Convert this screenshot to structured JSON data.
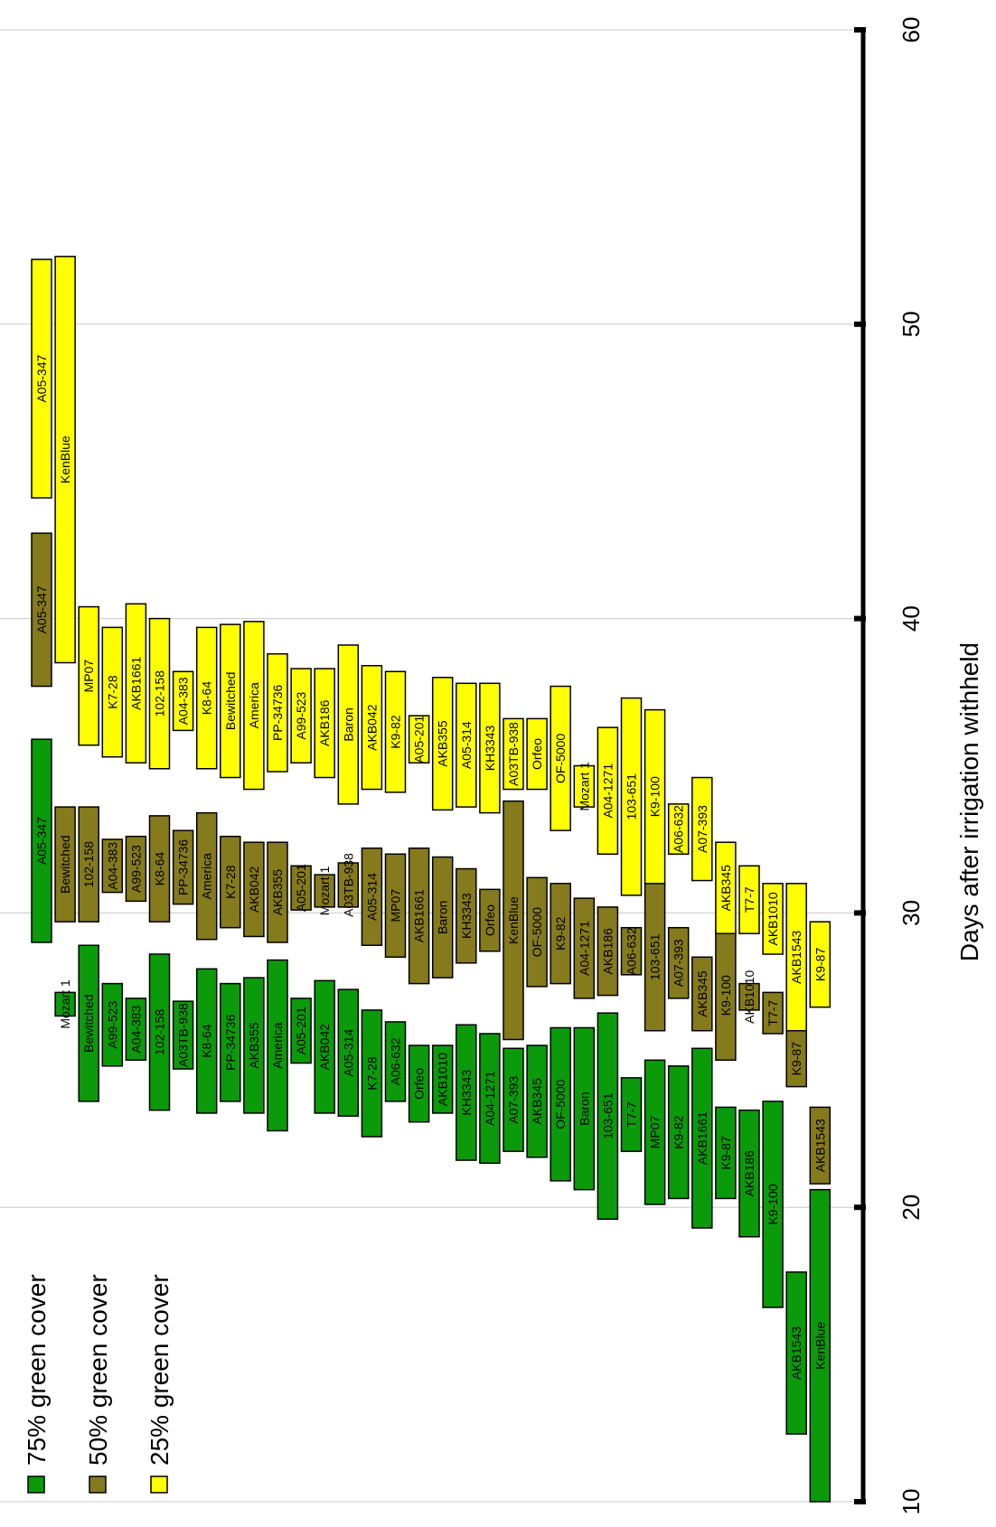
{
  "chart_data": {
    "type": "bar",
    "orientation": "floating-range",
    "xlabel": "Days after irrigation withheld",
    "xlim": [
      10,
      60
    ],
    "ticks": [
      10,
      20,
      30,
      40,
      50,
      60
    ],
    "grid": true,
    "legend_position": "left",
    "colors": {
      "75% green cover": "#0a9a0a",
      "50% green cover": "#857a1c",
      "25% green cover": "#ffff00"
    },
    "series": [
      {
        "name": "75% green cover",
        "color": "#0a9a0a",
        "bars": [
          {
            "label": "A05-347",
            "row": 0,
            "start": 29.0,
            "end": 35.9
          },
          {
            "label": "Mozart 1",
            "row": 1,
            "start": 26.5,
            "end": 27.3
          },
          {
            "label": "Bewitched",
            "row": 2,
            "start": 23.6,
            "end": 28.9
          },
          {
            "label": "A99-523",
            "row": 3,
            "start": 24.8,
            "end": 27.6
          },
          {
            "label": "A04-383",
            "row": 4,
            "start": 25.0,
            "end": 27.1
          },
          {
            "label": "102-158",
            "row": 5,
            "start": 23.3,
            "end": 28.6
          },
          {
            "label": "A03TB-938",
            "row": 6,
            "start": 24.7,
            "end": 27.0
          },
          {
            "label": "K8-64",
            "row": 7,
            "start": 23.2,
            "end": 28.1
          },
          {
            "label": "PP-34736",
            "row": 8,
            "start": 23.6,
            "end": 27.6
          },
          {
            "label": "AKB355",
            "row": 9,
            "start": 23.2,
            "end": 27.8
          },
          {
            "label": "America",
            "row": 10,
            "start": 22.6,
            "end": 28.4
          },
          {
            "label": "A05-201",
            "row": 11,
            "start": 24.9,
            "end": 27.1
          },
          {
            "label": "AKB042",
            "row": 12,
            "start": 23.2,
            "end": 27.7
          },
          {
            "label": "A05-314",
            "row": 13,
            "start": 23.1,
            "end": 27.4
          },
          {
            "label": "K7-28",
            "row": 14,
            "start": 22.4,
            "end": 26.7
          },
          {
            "label": "A06-632",
            "row": 15,
            "start": 23.6,
            "end": 26.3
          },
          {
            "label": "Orfeo",
            "row": 16,
            "start": 22.9,
            "end": 25.5
          },
          {
            "label": "AKB1010",
            "row": 17,
            "start": 23.2,
            "end": 25.5
          },
          {
            "label": "KH3343",
            "row": 18,
            "start": 21.6,
            "end": 26.2
          },
          {
            "label": "A04-1271",
            "row": 19,
            "start": 21.5,
            "end": 25.9
          },
          {
            "label": "A07-393",
            "row": 20,
            "start": 21.9,
            "end": 25.4
          },
          {
            "label": "AKB345",
            "row": 21,
            "start": 21.7,
            "end": 25.5
          },
          {
            "label": "OF-5000",
            "row": 22,
            "start": 20.9,
            "end": 26.1
          },
          {
            "label": "Baron",
            "row": 23,
            "start": 20.6,
            "end": 26.1
          },
          {
            "label": "103-651",
            "row": 24,
            "start": 19.6,
            "end": 26.6
          },
          {
            "label": "T7-7",
            "row": 25,
            "start": 21.9,
            "end": 24.4
          },
          {
            "label": "MP07",
            "row": 26,
            "start": 20.1,
            "end": 25.0
          },
          {
            "label": "K9-82",
            "row": 27,
            "start": 20.3,
            "end": 24.8
          },
          {
            "label": "AKB1661",
            "row": 28,
            "start": 19.3,
            "end": 25.4
          },
          {
            "label": "K9-87",
            "row": 29,
            "start": 20.3,
            "end": 23.4
          },
          {
            "label": "AKB186",
            "row": 30,
            "start": 19.0,
            "end": 23.3
          },
          {
            "label": "K9-100",
            "row": 31,
            "start": 16.6,
            "end": 23.6
          },
          {
            "label": "AKB1543",
            "row": 32,
            "start": 12.3,
            "end": 17.8
          },
          {
            "label": "KenBlue",
            "row": 33,
            "start": 10.0,
            "end": 20.6
          }
        ]
      },
      {
        "name": "50% green cover",
        "color": "#857a1c",
        "bars": [
          {
            "label": "A05-347",
            "row": 0,
            "start": 37.7,
            "end": 42.9
          },
          {
            "label": "Bewitched",
            "row": 1,
            "start": 29.7,
            "end": 33.6
          },
          {
            "label": "102-158",
            "row": 2,
            "start": 29.7,
            "end": 33.6
          },
          {
            "label": "A04-383",
            "row": 3,
            "start": 30.7,
            "end": 32.5
          },
          {
            "label": "A99-523",
            "row": 4,
            "start": 30.4,
            "end": 32.6
          },
          {
            "label": "K8-64",
            "row": 5,
            "start": 29.7,
            "end": 33.3
          },
          {
            "label": "PP-34736",
            "row": 6,
            "start": 30.3,
            "end": 32.8
          },
          {
            "label": "America",
            "row": 7,
            "start": 29.1,
            "end": 33.4
          },
          {
            "label": "K7-28",
            "row": 8,
            "start": 29.5,
            "end": 32.6
          },
          {
            "label": "AKB042",
            "row": 9,
            "start": 29.2,
            "end": 32.4
          },
          {
            "label": "AKB355",
            "row": 10,
            "start": 29.0,
            "end": 32.4
          },
          {
            "label": "A05-201",
            "row": 11,
            "start": 30.1,
            "end": 31.6
          },
          {
            "label": "Mozart 1",
            "row": 12,
            "start": 30.2,
            "end": 31.3
          },
          {
            "label": "A03TB-938",
            "row": 13,
            "start": 30.2,
            "end": 31.7
          },
          {
            "label": "A05-314",
            "row": 14,
            "start": 28.9,
            "end": 32.2
          },
          {
            "label": "MP07",
            "row": 15,
            "start": 28.5,
            "end": 32.0
          },
          {
            "label": "AKB1661",
            "row": 16,
            "start": 27.6,
            "end": 32.2
          },
          {
            "label": "Baron",
            "row": 17,
            "start": 27.8,
            "end": 31.9
          },
          {
            "label": "KH3343",
            "row": 18,
            "start": 28.3,
            "end": 31.5
          },
          {
            "label": "Orfeo",
            "row": 19,
            "start": 28.7,
            "end": 30.8
          },
          {
            "label": "KenBlue",
            "row": 20,
            "start": 25.7,
            "end": 33.8
          },
          {
            "label": "OF-5000",
            "row": 21,
            "start": 27.5,
            "end": 31.2
          },
          {
            "label": "K9-82",
            "row": 22,
            "start": 27.6,
            "end": 31.0
          },
          {
            "label": "A04-1271",
            "row": 23,
            "start": 27.1,
            "end": 30.5
          },
          {
            "label": "AKB186",
            "row": 24,
            "start": 27.2,
            "end": 30.2
          },
          {
            "label": "A06-632",
            "row": 25,
            "start": 27.9,
            "end": 29.5
          },
          {
            "label": "103-651",
            "row": 26,
            "start": 26.0,
            "end": 31.0
          },
          {
            "label": "A07-393",
            "row": 27,
            "start": 27.1,
            "end": 29.5
          },
          {
            "label": "AKB345",
            "row": 28,
            "start": 26.0,
            "end": 28.5
          },
          {
            "label": "K9-100",
            "row": 29,
            "start": 25.0,
            "end": 29.4
          },
          {
            "label": "AKB1010",
            "row": 30,
            "start": 26.7,
            "end": 27.6
          },
          {
            "label": "T7-7",
            "row": 31,
            "start": 25.9,
            "end": 27.3
          },
          {
            "label": "K9-87",
            "row": 32,
            "start": 24.1,
            "end": 26.0
          },
          {
            "label": "AKB1543",
            "row": 33,
            "start": 20.8,
            "end": 23.4
          }
        ]
      },
      {
        "name": "25% green cover",
        "color": "#ffff00",
        "bars": [
          {
            "label": "A05-347",
            "row": 0,
            "start": 44.1,
            "end": 52.2
          },
          {
            "label": "KenBlue",
            "row": 1,
            "start": 38.5,
            "end": 52.3
          },
          {
            "label": "MP07",
            "row": 2,
            "start": 35.7,
            "end": 40.4
          },
          {
            "label": "K7-28",
            "row": 3,
            "start": 35.3,
            "end": 39.7
          },
          {
            "label": "AKB1661",
            "row": 4,
            "start": 35.1,
            "end": 40.5
          },
          {
            "label": "102-158",
            "row": 5,
            "start": 34.9,
            "end": 40.0
          },
          {
            "label": "A04-383",
            "row": 6,
            "start": 36.2,
            "end": 38.2
          },
          {
            "label": "K8-64",
            "row": 7,
            "start": 34.9,
            "end": 39.7
          },
          {
            "label": "Bewitched",
            "row": 8,
            "start": 34.6,
            "end": 39.8
          },
          {
            "label": "America",
            "row": 9,
            "start": 34.2,
            "end": 39.9
          },
          {
            "label": "PP-34736",
            "row": 10,
            "start": 34.8,
            "end": 38.8
          },
          {
            "label": "A99-523",
            "row": 11,
            "start": 35.1,
            "end": 38.3
          },
          {
            "label": "AKB186",
            "row": 12,
            "start": 34.6,
            "end": 38.3
          },
          {
            "label": "Baron",
            "row": 13,
            "start": 33.7,
            "end": 39.1
          },
          {
            "label": "AKB042",
            "row": 14,
            "start": 34.2,
            "end": 38.4
          },
          {
            "label": "K9-82",
            "row": 15,
            "start": 34.1,
            "end": 38.2
          },
          {
            "label": "A05-201",
            "row": 16,
            "start": 35.1,
            "end": 36.7
          },
          {
            "label": "AKB355",
            "row": 17,
            "start": 33.5,
            "end": 38.0
          },
          {
            "label": "A05-314",
            "row": 18,
            "start": 33.6,
            "end": 37.8
          },
          {
            "label": "KH3343",
            "row": 19,
            "start": 33.4,
            "end": 37.8
          },
          {
            "label": "A03TB-938",
            "row": 20,
            "start": 34.2,
            "end": 36.6
          },
          {
            "label": "Orfeo",
            "row": 21,
            "start": 34.2,
            "end": 36.6
          },
          {
            "label": "OF-5000",
            "row": 22,
            "start": 32.8,
            "end": 37.7
          },
          {
            "label": "Mozart 1",
            "row": 23,
            "start": 33.6,
            "end": 35.0
          },
          {
            "label": "A04-1271",
            "row": 24,
            "start": 32.0,
            "end": 36.3
          },
          {
            "label": "103-651",
            "row": 25,
            "start": 30.6,
            "end": 37.3
          },
          {
            "label": "K9-100",
            "row": 26,
            "start": 31.0,
            "end": 36.9
          },
          {
            "label": "A06-632",
            "row": 27,
            "start": 32.0,
            "end": 33.7
          },
          {
            "label": "A07-393",
            "row": 28,
            "start": 31.1,
            "end": 34.6
          },
          {
            "label": "AKB345",
            "row": 29,
            "start": 29.3,
            "end": 32.4
          },
          {
            "label": "T7-7",
            "row": 30,
            "start": 29.3,
            "end": 31.6
          },
          {
            "label": "AKB1010",
            "row": 31,
            "start": 28.6,
            "end": 31.0
          },
          {
            "label": "AKB1543",
            "row": 32,
            "start": 26.0,
            "end": 31.0
          },
          {
            "label": "K9-87",
            "row": 33,
            "start": 26.8,
            "end": 29.7
          }
        ]
      }
    ]
  }
}
